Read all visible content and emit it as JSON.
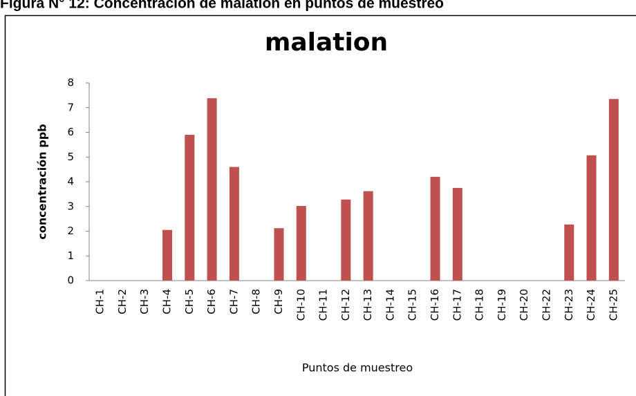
{
  "figure_caption": "Figura N° 12: Concentración de malation en puntos de muestreo",
  "chart_data": {
    "type": "bar",
    "title": "malation",
    "x_label": "Puntos de muestreo",
    "y_label": "concentración ppb",
    "categories": [
      "CH-1",
      "CH-2",
      "CH-3",
      "CH-4",
      "CH-5",
      "CH-6",
      "CH-7",
      "CH-8",
      "CH-9",
      "CH-10",
      "CH-11",
      "CH-12",
      "CH-13",
      "CH-14",
      "CH-15",
      "CH-16",
      "CH-17",
      "CH-18",
      "CH-19",
      "CH-20",
      "CH-22",
      "CH-23",
      "CH-24",
      "CH-25"
    ],
    "values": [
      0,
      0,
      0,
      2.05,
      5.9,
      7.38,
      4.6,
      0,
      2.12,
      3.02,
      0,
      3.28,
      3.62,
      0,
      0,
      4.2,
      3.75,
      0,
      0,
      0,
      0,
      2.27,
      5.07,
      7.35
    ],
    "color": "#c0504d",
    "ylim": [
      0,
      8
    ],
    "yticks": [
      0,
      1,
      2,
      3,
      4,
      5,
      6,
      7,
      8
    ],
    "grid": false
  }
}
